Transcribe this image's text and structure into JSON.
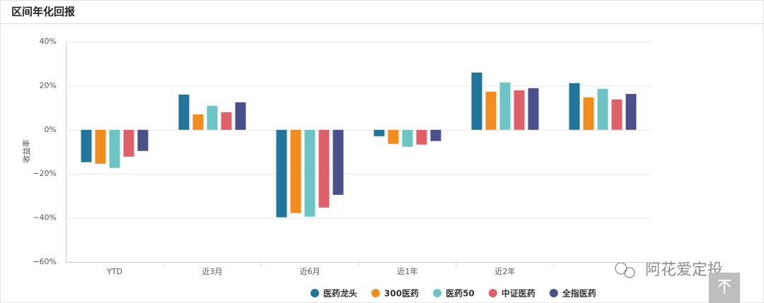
{
  "chart_data": {
    "type": "bar",
    "title": "区间年化回报",
    "ylabel": "收益率",
    "categories": [
      "YTD",
      "近3月",
      "近6月",
      "近1年",
      "近2年",
      null
    ],
    "series": [
      {
        "name": "医药龙头",
        "color": "#21759b",
        "values": [
          -14.7,
          16,
          -39.7,
          -2.9,
          26,
          21.2
        ]
      },
      {
        "name": "300医药",
        "color": "#f28c1e",
        "values": [
          -15.4,
          7,
          -37.8,
          -6.4,
          17.3,
          14.7
        ]
      },
      {
        "name": "医药50",
        "color": "#6cc5c4",
        "values": [
          -17.3,
          10.9,
          -39.4,
          -7.7,
          21.5,
          18.6
        ]
      },
      {
        "name": "中证医药",
        "color": "#e0606a",
        "values": [
          -12.2,
          8,
          -35.3,
          -6.7,
          17.9,
          13.8
        ]
      },
      {
        "name": "全指医药",
        "color": "#4b4f8c",
        "values": [
          -9.6,
          12.5,
          -29.5,
          -5.1,
          18.9,
          16.3
        ]
      }
    ],
    "ylim": [
      -60,
      40
    ],
    "yticks": [
      {
        "value": -60,
        "label": "−60%"
      },
      {
        "value": -40,
        "label": "−40%"
      },
      {
        "value": -20,
        "label": "−20%"
      },
      {
        "value": 0,
        "label": "0%"
      },
      {
        "value": 20,
        "label": "20%"
      },
      {
        "value": 40,
        "label": "40%"
      }
    ],
    "grid": true,
    "legend": "bottom",
    "watermark": "阿花爱定投"
  }
}
